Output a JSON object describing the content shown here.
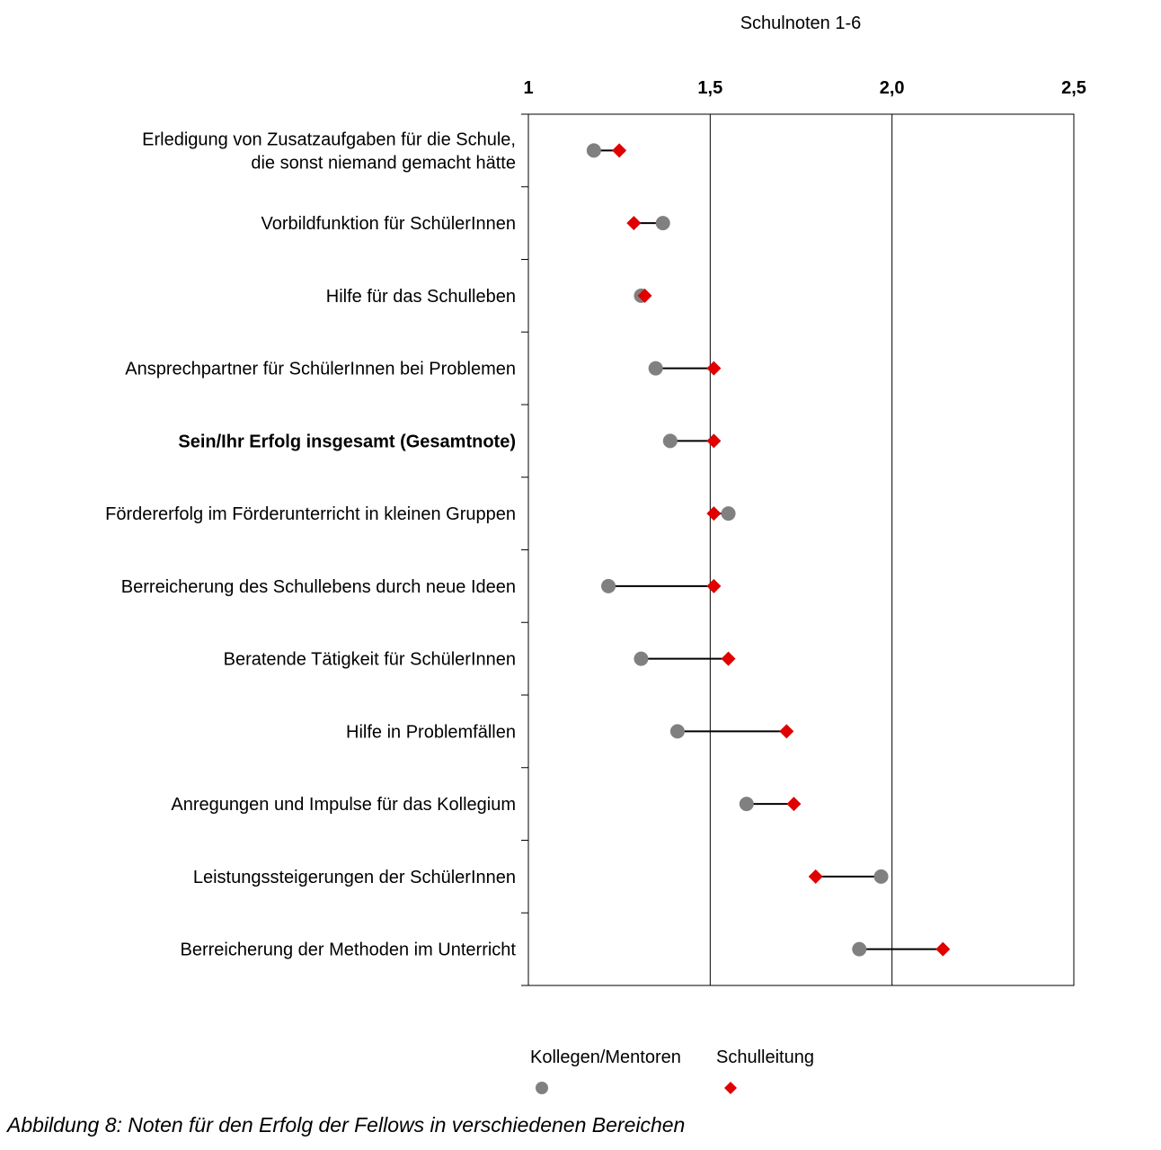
{
  "chart_data": {
    "type": "dot-dumbbell",
    "title": "Schulnoten 1-6",
    "x_ticks": [
      "1",
      "1,5",
      "2,0",
      "2,5"
    ],
    "x_tick_values": [
      1,
      1.5,
      2.0,
      2.5
    ],
    "xlim": [
      1,
      2.5
    ],
    "categories": [
      {
        "label_lines": [
          "Erledigung von Zusatzaufgaben für die Schule,",
          "die sonst niemand gemacht hätte"
        ],
        "bold": false
      },
      {
        "label_lines": [
          "Vorbildfunktion für SchülerInnen"
        ],
        "bold": false
      },
      {
        "label_lines": [
          "Hilfe für das Schulleben"
        ],
        "bold": false
      },
      {
        "label_lines": [
          "Ansprechpartner für SchülerInnen bei Problemen"
        ],
        "bold": false
      },
      {
        "label_lines": [
          "Sein/Ihr Erfolg insgesamt (Gesamtnote)"
        ],
        "bold": true
      },
      {
        "label_lines": [
          "Fördererfolg im Förderunterricht in kleinen Gruppen"
        ],
        "bold": false
      },
      {
        "label_lines": [
          "Berreicherung des Schullebens durch neue Ideen"
        ],
        "bold": false
      },
      {
        "label_lines": [
          "Beratende Tätigkeit für SchülerInnen"
        ],
        "bold": false
      },
      {
        "label_lines": [
          "Hilfe in Problemfällen"
        ],
        "bold": false
      },
      {
        "label_lines": [
          "Anregungen und Impulse für das Kollegium"
        ],
        "bold": false
      },
      {
        "label_lines": [
          "Leistungssteigerungen der SchülerInnen"
        ],
        "bold": false
      },
      {
        "label_lines": [
          "Berreicherung der Methoden im Unterricht"
        ],
        "bold": false
      }
    ],
    "series": [
      {
        "name": "Kollegen/Mentoren",
        "marker": "circle",
        "color": "#808080",
        "values": [
          1.18,
          1.37,
          1.31,
          1.35,
          1.39,
          1.55,
          1.22,
          1.31,
          1.41,
          1.6,
          1.97,
          1.91
        ]
      },
      {
        "name": "Schulleitung",
        "marker": "diamond",
        "color": "#e00000",
        "values": [
          1.25,
          1.29,
          1.32,
          1.51,
          1.51,
          1.51,
          1.51,
          1.55,
          1.71,
          1.73,
          1.79,
          2.14
        ]
      }
    ],
    "grid": {
      "vertical_lines_at": [
        1.5,
        2.0
      ]
    },
    "legend_position": "bottom"
  },
  "caption": "Abbildung 8: Noten für den Erfolg der Fellows in verschiedenen Bereichen"
}
